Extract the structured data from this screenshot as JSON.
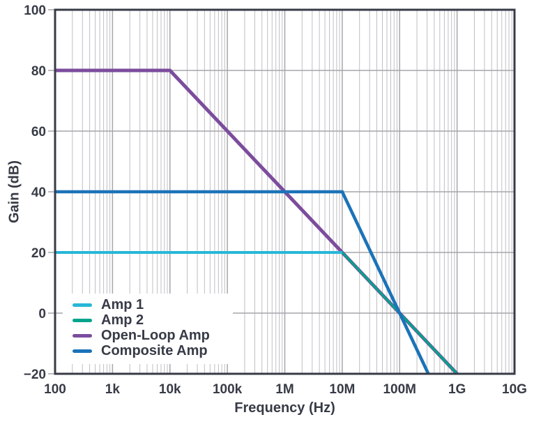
{
  "chart_data": {
    "type": "line",
    "title": "",
    "xlabel": "Frequency (Hz)",
    "ylabel": "Gain (dB)",
    "x_scale": "log",
    "x_log_range": [
      2,
      10
    ],
    "ylim": [
      -20,
      100
    ],
    "y_step": 20,
    "grid": "on",
    "legend_position": "lower-left",
    "x_ticks": [
      {
        "value": 100,
        "label": "100"
      },
      {
        "value": 1000,
        "label": "1k"
      },
      {
        "value": 10000,
        "label": "10k"
      },
      {
        "value": 100000,
        "label": "100k"
      },
      {
        "value": 1000000,
        "label": "1M"
      },
      {
        "value": 10000000,
        "label": "10M"
      },
      {
        "value": 100000000,
        "label": "100M"
      },
      {
        "value": 1000000000,
        "label": "1G"
      },
      {
        "value": 10000000000,
        "label": "10G"
      }
    ],
    "y_ticks": [
      {
        "value": 100,
        "label": "100"
      },
      {
        "value": 80,
        "label": "80"
      },
      {
        "value": 60,
        "label": "60"
      },
      {
        "value": 40,
        "label": "40"
      },
      {
        "value": 20,
        "label": "20"
      },
      {
        "value": 0,
        "label": "0"
      },
      {
        "value": -20,
        "label": "−20"
      }
    ],
    "series": [
      {
        "name": "Amp 1",
        "color": "#27b7d7",
        "points": [
          [
            100,
            20
          ],
          [
            10000000,
            20
          ]
        ],
        "note": "20 dB flat; roll-off beyond 10 MHz coincides with Amp 2 / Open-Loop Amp trace"
      },
      {
        "name": "Amp 2",
        "color": "#00a48b",
        "points": [
          [
            100,
            20
          ],
          [
            10000000,
            20
          ],
          [
            1000000000,
            -20
          ]
        ]
      },
      {
        "name": "Open-Loop Amp",
        "color": "#7c4c9d",
        "points": [
          [
            100,
            80
          ],
          [
            10000,
            80
          ],
          [
            1000000000,
            -20
          ]
        ]
      },
      {
        "name": "Composite Amp",
        "color": "#1b73b8",
        "points": [
          [
            100,
            40
          ],
          [
            10000000,
            40
          ],
          [
            316227766,
            -20
          ]
        ]
      }
    ],
    "style": {
      "minor_grid_color": "#bfbfc4",
      "major_grid_color": "#a6a6ac",
      "axis_color": "#373b46",
      "text_color": "#373b46",
      "background": "#ffffff"
    }
  },
  "legend": {
    "items": [
      {
        "label": "Amp 1",
        "color": "#27b7d7"
      },
      {
        "label": "Amp 2",
        "color": "#00a48b"
      },
      {
        "label": "Open-Loop Amp",
        "color": "#7c4c9d"
      },
      {
        "label": "Composite Amp",
        "color": "#1b73b8"
      }
    ]
  }
}
